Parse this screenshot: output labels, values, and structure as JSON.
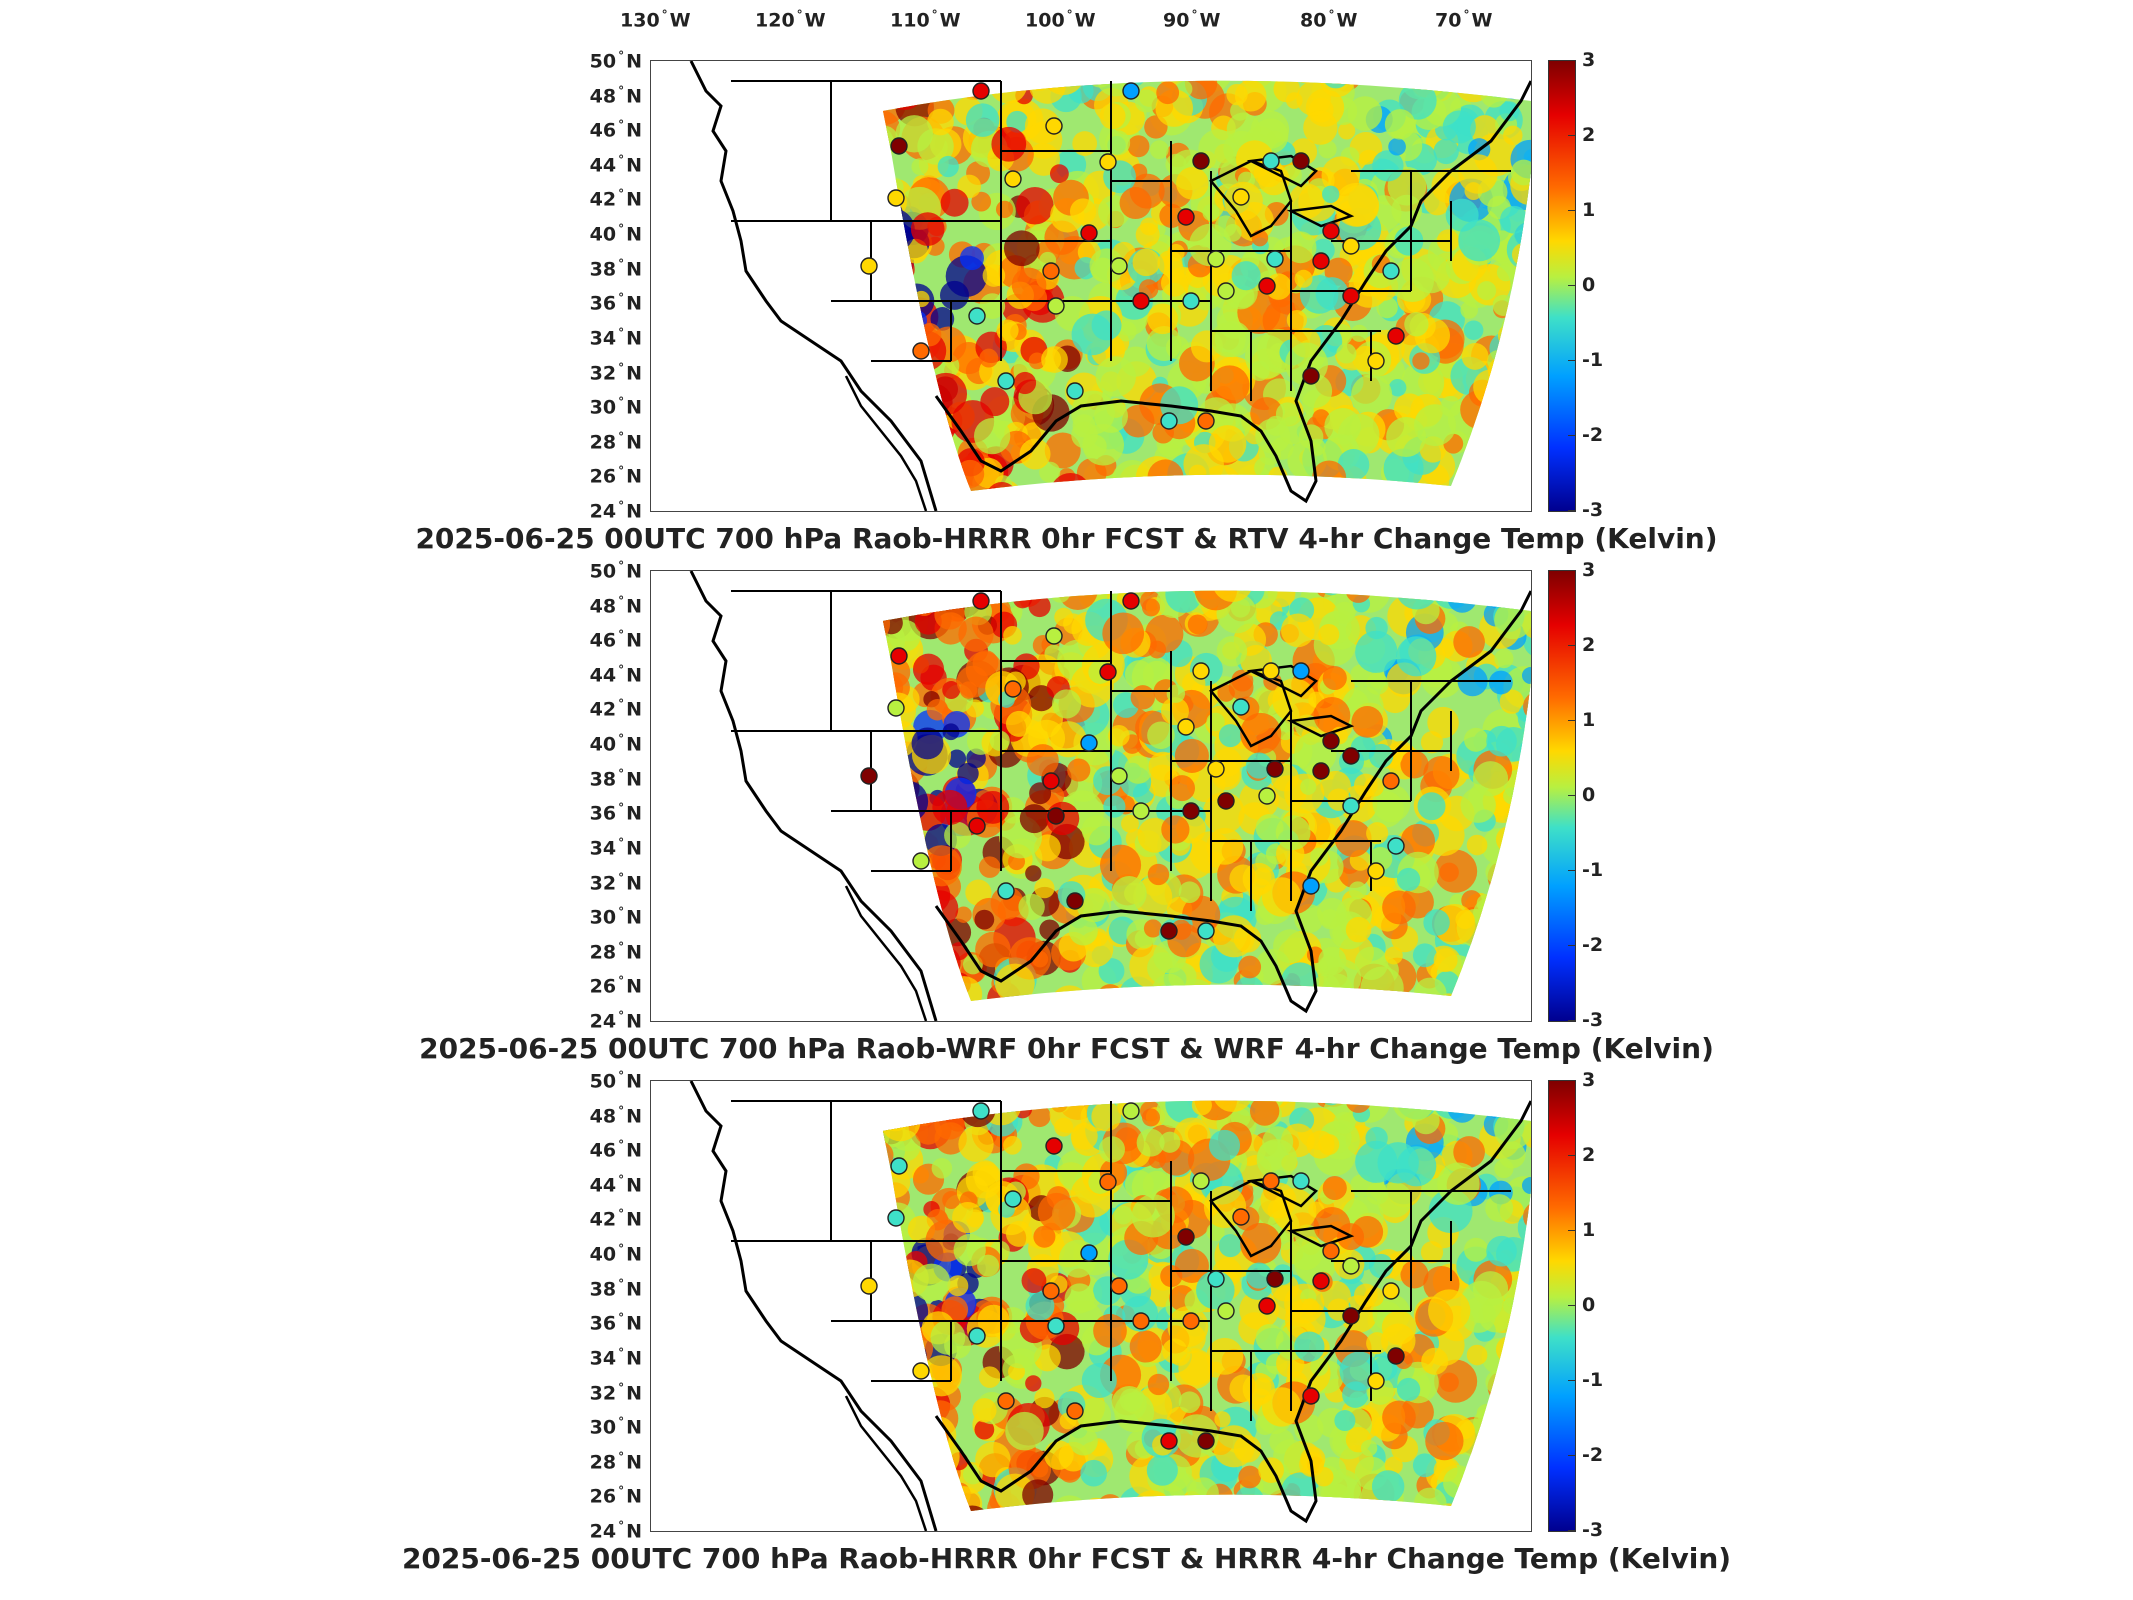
{
  "longitude_labels": [
    "130",
    "120",
    "110",
    "100",
    "90",
    "80",
    "70"
  ],
  "longitude_suffix": "W",
  "latitude_labels": [
    "50",
    "48",
    "46",
    "44",
    "42",
    "40",
    "38",
    "36",
    "34",
    "32",
    "30",
    "28",
    "26",
    "24"
  ],
  "latitude_suffix": "N",
  "colorbar_ticks": [
    "3",
    "2",
    "1",
    "0",
    "-1",
    "-2",
    "-3"
  ],
  "colorbar_colors": [
    "#7f0000",
    "#e50000",
    "#ff6a00",
    "#ffd800",
    "#b8f040",
    "#3ee0c8",
    "#00a0ff",
    "#0030ff",
    "#00008f"
  ],
  "colorbar_range": [
    -3,
    3
  ],
  "panels": [
    {
      "title": "2025-06-25 00UTC 700 hPa Raob-HRRR 0hr FCST & RTV 4-hr Change Temp (Kelvin)"
    },
    {
      "title": "2025-06-25 00UTC 700 hPa Raob-WRF 0hr FCST & WRF 4-hr Change Temp (Kelvin)"
    },
    {
      "title": "2025-06-25 00UTC 700 hPa Raob-HRRR 0hr FCST & HRRR 4-hr Change Temp (Kelvin)"
    }
  ]
}
